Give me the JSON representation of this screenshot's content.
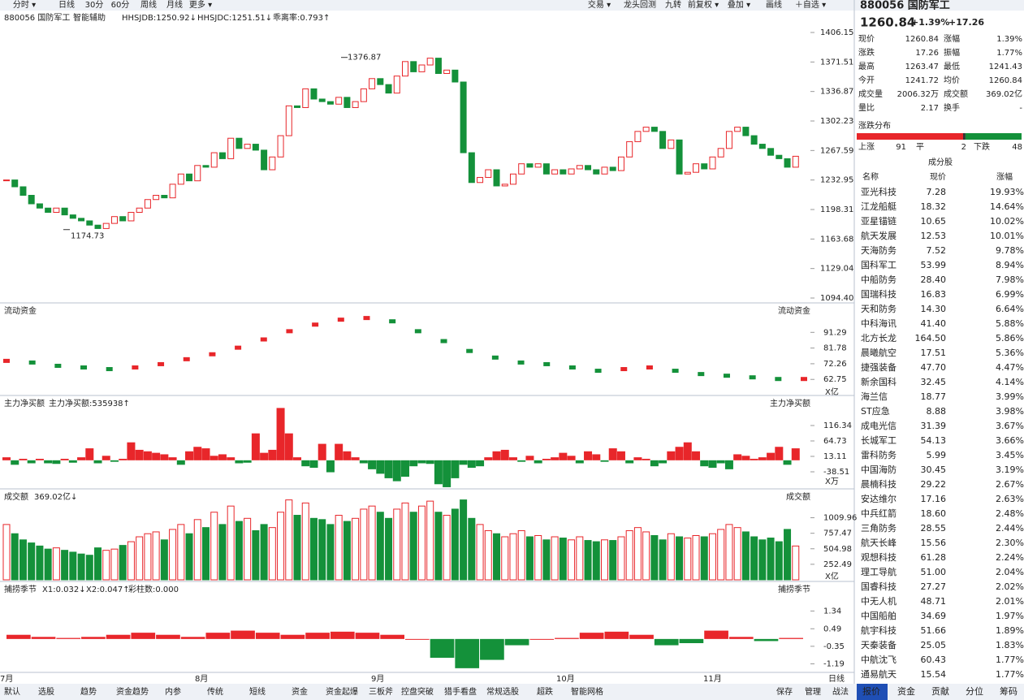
{
  "toolbar": {
    "left": [
      "分时 ▾",
      "日线",
      "30分",
      "60分",
      "周线",
      "月线",
      "更多 ▾"
    ],
    "right": [
      "交易 ▾",
      "龙头回测",
      "九转",
      "前复权 ▾",
      "叠加 ▾",
      "画线",
      "＋自选 ▾"
    ]
  },
  "header": {
    "code_name": "880056 国防军工",
    "indicator": "智能辅助",
    "hhsjdb": "HHSJDB:1250.92↓",
    "hhsjdc": "HHSJDC:1251.51↓",
    "bias": "乖离率:0.793↑"
  },
  "price_chart": {
    "type": "candlestick",
    "closes": [
      1233,
      1225,
      1215,
      1205,
      1200,
      1195,
      1200,
      1192,
      1188,
      1185,
      1180,
      1176,
      1182,
      1190,
      1185,
      1195,
      1200,
      1210,
      1215,
      1212,
      1228,
      1240,
      1232,
      1250,
      1248,
      1265,
      1258,
      1282,
      1270,
      1275,
      1268,
      1245,
      1260,
      1285,
      1320,
      1318,
      1340,
      1328,
      1325,
      1322,
      1330,
      1318,
      1325,
      1340,
      1352,
      1345,
      1335,
      1355,
      1372,
      1360,
      1368,
      1376,
      1358,
      1362,
      1348,
      1265,
      1230,
      1236,
      1245,
      1226,
      1228,
      1240,
      1252,
      1248,
      1252,
      1240,
      1245,
      1240,
      1246,
      1250,
      1245,
      1240,
      1248,
      1244,
      1260,
      1278,
      1290,
      1295,
      1290,
      1270,
      1280,
      1240,
      1242,
      1252,
      1246,
      1260,
      1270,
      1290,
      1295,
      1285,
      1275,
      1270,
      1262,
      1258,
      1248,
      1260.84
    ],
    "ylim": [
      1094.4,
      1406.15
    ],
    "yticks": [
      1406.15,
      1371.51,
      1336.87,
      1302.23,
      1267.59,
      1232.95,
      1198.31,
      1163.68,
      1129.04,
      {
        "value": 1094.4,
        "label": "1094.40"
      }
    ],
    "high_label": 1376.87,
    "low_label": 1174.73,
    "months": [
      "7月",
      "8月",
      "9月",
      "10月",
      "11月"
    ]
  },
  "flow_panel": {
    "title": "流动资金",
    "title_right": "流动资金",
    "values": [
      74,
      73,
      71,
      70,
      69,
      70,
      72,
      75,
      78,
      82,
      87,
      92,
      96,
      99,
      100,
      98,
      92,
      86,
      80,
      76,
      73,
      72,
      70,
      68,
      69,
      70,
      68,
      66,
      65,
      64,
      63,
      63
    ],
    "ylim": [
      53,
      100.8
    ],
    "yticks": [
      91.29,
      81.78,
      72.26,
      62.75
    ],
    "unit": "X亿"
  },
  "net_panel": {
    "title": "主力净买额",
    "value_text": "主力净买额:535938↑",
    "title_right": "主力净买额",
    "values": [
      10,
      -15,
      5,
      -10,
      5,
      -10,
      -12,
      5,
      -8,
      10,
      40,
      -10,
      15,
      -5,
      5,
      60,
      35,
      30,
      25,
      20,
      10,
      -15,
      30,
      45,
      40,
      15,
      20,
      10,
      -10,
      -8,
      90,
      25,
      35,
      175,
      90,
      10,
      -20,
      -25,
      55,
      -40,
      55,
      30,
      10,
      -10,
      -30,
      -45,
      -60,
      -70,
      -55,
      -20,
      -10,
      -12,
      -80,
      -90,
      -60,
      -15,
      -25,
      -20,
      10,
      30,
      35,
      10,
      -5,
      15,
      -10,
      5,
      10,
      25,
      15,
      -10,
      30,
      20,
      -5,
      40,
      30,
      -10,
      10,
      5,
      -20,
      -10,
      30,
      45,
      60,
      30,
      -20,
      -25,
      -10,
      -30,
      20,
      15,
      5,
      10,
      25,
      45,
      -15,
      40
    ],
    "ylim": [
      -82,
      181.5
    ],
    "yticks": [
      116.34,
      64.73,
      13.11,
      -38.51
    ],
    "unit": "X万"
  },
  "volume_panel": {
    "title": "成交额",
    "value_text": "369.02亿↓",
    "title_right": "成交额",
    "values": [
      900,
      750,
      650,
      600,
      550,
      500,
      520,
      480,
      450,
      420,
      400,
      520,
      480,
      500,
      560,
      620,
      700,
      750,
      780,
      650,
      820,
      900,
      750,
      980,
      850,
      1100,
      900,
      1200,
      950,
      1000,
      800,
      900,
      850,
      1100,
      1300,
      1050,
      1250,
      1000,
      980,
      900,
      1050,
      950,
      1000,
      1150,
      1200,
      1100,
      1000,
      1150,
      1250,
      1100,
      1200,
      1280,
      1100,
      1050,
      1150,
      1300,
      1000,
      900,
      800,
      750,
      700,
      750,
      800,
      700,
      720,
      650,
      700,
      680,
      650,
      700,
      640,
      620,
      650,
      640,
      700,
      800,
      850,
      780,
      720,
      650,
      750,
      700,
      680,
      720,
      700,
      750,
      820,
      900,
      850,
      780,
      700,
      650,
      680,
      620,
      820,
      550
    ],
    "ylim": [
      0,
      1440
    ],
    "yticks": [
      252.49,
      504.98,
      757.47,
      1009.96
    ],
    "unit": "X亿"
  },
  "cycle_panel": {
    "title": "捕捞季节",
    "x1": "X1:0.032↓",
    "x2": "X2:0.047↑",
    "bars_count": "彩柱数:0.000",
    "title_right": "捕捞季节",
    "values": [
      0.2,
      0.1,
      0.05,
      0.1,
      0.2,
      0.3,
      0.2,
      0.1,
      0.3,
      0.4,
      0.3,
      0.2,
      0.3,
      0.35,
      0.3,
      0.2,
      0,
      -0.9,
      -1.4,
      -1.0,
      -0.3,
      0,
      0.05,
      0.3,
      0.35,
      0.2,
      -0.3,
      -0.2,
      0.4,
      0.1,
      -0.1,
      0.05
    ],
    "ylim": [
      -1.6,
      1.9
    ],
    "yticks": [
      1.34,
      0.49,
      -0.35,
      -1.19
    ]
  },
  "period_label": "日线",
  "bottom_tabs": [
    "默认",
    "选股",
    "趋势",
    "资金趋势",
    "内参",
    "传统",
    "短线",
    "资金",
    "资金起爆",
    "三板斧",
    "控盘突破",
    "猎手看盘",
    "常规选股",
    "超跌",
    "智能网格"
  ],
  "bottom_right": [
    "保存",
    "管理",
    "战法"
  ],
  "side_tabs": [
    "报价",
    "资金",
    "贡献",
    "分位",
    "筹码"
  ],
  "quote": {
    "code_name": "880056 国防军工",
    "price": "1260.84",
    "pct": "+1.39%",
    "chg": "+17.26",
    "fields": [
      [
        "现价",
        "1260.84",
        "涨幅",
        "1.39%"
      ],
      [
        "涨跌",
        "17.26",
        "振幅",
        "1.77%"
      ],
      [
        "最高",
        "1263.47",
        "最低",
        "1241.43"
      ],
      [
        "今开",
        "1241.72",
        "均价",
        "1260.84"
      ],
      [
        "成交量",
        "2006.32万",
        "成交额",
        "369.02亿"
      ],
      [
        "量比",
        "2.17",
        "换手",
        "-"
      ]
    ],
    "distribution_title": "涨跌分布",
    "dist": {
      "up_label": "上涨",
      "up": 91,
      "flat_label": "平",
      "flat": 2,
      "down_label": "下跌",
      "down": 48
    },
    "constituents_title": "成分股",
    "columns": [
      "名称",
      "现价",
      "涨幅"
    ],
    "rows": [
      [
        "亚光科技",
        "7.28",
        "19.93%"
      ],
      [
        "江龙船艇",
        "18.32",
        "14.64%"
      ],
      [
        "亚星锚链",
        "10.65",
        "10.02%"
      ],
      [
        "航天发展",
        "12.53",
        "10.01%"
      ],
      [
        "天海防务",
        "7.52",
        "9.78%"
      ],
      [
        "国科军工",
        "53.99",
        "8.94%"
      ],
      [
        "中船防务",
        "28.40",
        "7.98%"
      ],
      [
        "国瑞科技",
        "16.83",
        "6.99%"
      ],
      [
        "天和防务",
        "14.30",
        "6.64%"
      ],
      [
        "中科海讯",
        "41.40",
        "5.88%"
      ],
      [
        "北方长龙",
        "164.50",
        "5.86%"
      ],
      [
        "晨曦航空",
        "17.51",
        "5.36%"
      ],
      [
        "捷强装备",
        "47.70",
        "4.47%"
      ],
      [
        "新余国科",
        "32.45",
        "4.14%"
      ],
      [
        "海兰信",
        "18.77",
        "3.99%"
      ],
      [
        "ST应急",
        "8.88",
        "3.98%"
      ],
      [
        "成电光信",
        "31.39",
        "3.67%"
      ],
      [
        "长城军工",
        "54.13",
        "3.66%"
      ],
      [
        "雷科防务",
        "5.99",
        "3.45%"
      ],
      [
        "中国海防",
        "30.45",
        "3.19%"
      ],
      [
        "晨楠科技",
        "29.22",
        "2.67%"
      ],
      [
        "安达维尔",
        "17.16",
        "2.63%"
      ],
      [
        "中兵红箭",
        "18.60",
        "2.48%"
      ],
      [
        "三角防务",
        "28.55",
        "2.44%"
      ],
      [
        "航天长峰",
        "15.56",
        "2.30%"
      ],
      [
        "观想科技",
        "61.28",
        "2.24%"
      ],
      [
        "理工导航",
        "51.00",
        "2.04%"
      ],
      [
        "国睿科技",
        "27.27",
        "2.02%"
      ],
      [
        "中无人机",
        "48.71",
        "2.01%"
      ],
      [
        "中国船舶",
        "34.69",
        "1.97%"
      ],
      [
        "航宇科技",
        "51.66",
        "1.89%"
      ],
      [
        "天秦装备",
        "25.05",
        "1.83%"
      ],
      [
        "中航沈飞",
        "60.43",
        "1.77%"
      ],
      [
        "通易航天",
        "15.54",
        "1.77%"
      ]
    ]
  }
}
